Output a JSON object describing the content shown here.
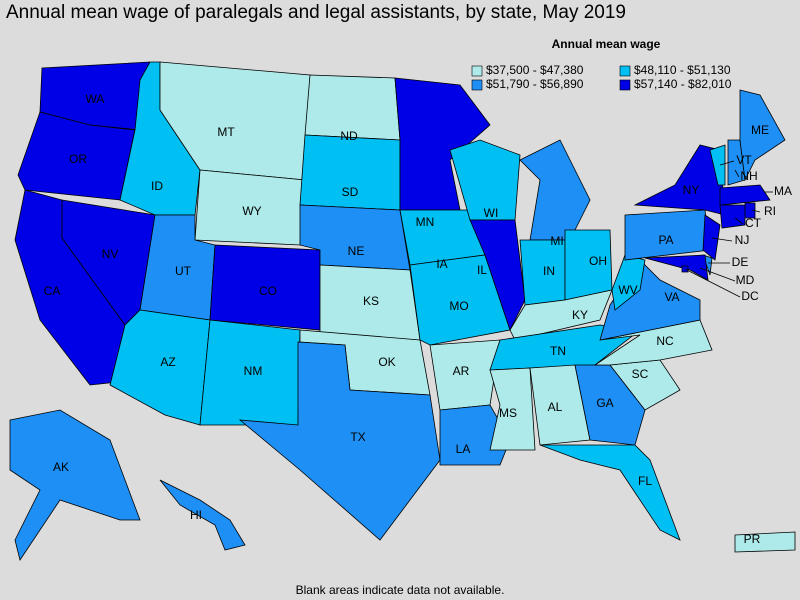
{
  "title": "Annual mean wage of paralegals and legal assistants, by state, May 2019",
  "legend": {
    "title": "Annual mean wage",
    "entries": [
      {
        "label": "$37,500 - $47,380",
        "color": "#aeeaea"
      },
      {
        "label": "$48,110 - $51,130",
        "color": "#00bff3"
      },
      {
        "label": "$51,790 - $56,890",
        "color": "#1e8ff5"
      },
      {
        "label": "$57,140 - $82,010",
        "color": "#0000e6"
      }
    ]
  },
  "states": [
    {
      "label": "WA",
      "class": 3
    },
    {
      "label": "OR",
      "class": 3
    },
    {
      "label": "CA",
      "class": 3
    },
    {
      "label": "NV",
      "class": 3
    },
    {
      "label": "ID",
      "class": 1
    },
    {
      "label": "MT",
      "class": 0
    },
    {
      "label": "WY",
      "class": 0
    },
    {
      "label": "UT",
      "class": 2
    },
    {
      "label": "CO",
      "class": 3
    },
    {
      "label": "AZ",
      "class": 1
    },
    {
      "label": "NM",
      "class": 1
    },
    {
      "label": "ND",
      "class": 0
    },
    {
      "label": "SD",
      "class": 1
    },
    {
      "label": "NE",
      "class": 2
    },
    {
      "label": "KS",
      "class": 0
    },
    {
      "label": "OK",
      "class": 0
    },
    {
      "label": "TX",
      "class": 2
    },
    {
      "label": "MN",
      "class": 3
    },
    {
      "label": "IA",
      "class": 1
    },
    {
      "label": "MO",
      "class": 1
    },
    {
      "label": "AR",
      "class": 0
    },
    {
      "label": "LA",
      "class": 2
    },
    {
      "label": "WI",
      "class": 1
    },
    {
      "label": "IL",
      "class": 3
    },
    {
      "label": "MI",
      "class": 2
    },
    {
      "label": "IN",
      "class": 1
    },
    {
      "label": "OH",
      "class": 1
    },
    {
      "label": "KY",
      "class": 0
    },
    {
      "label": "TN",
      "class": 1
    },
    {
      "label": "MS",
      "class": 0
    },
    {
      "label": "AL",
      "class": 0
    },
    {
      "label": "GA",
      "class": 2
    },
    {
      "label": "FL",
      "class": 1
    },
    {
      "label": "SC",
      "class": 0
    },
    {
      "label": "NC",
      "class": 0
    },
    {
      "label": "VA",
      "class": 2
    },
    {
      "label": "WV",
      "class": 1
    },
    {
      "label": "PA",
      "class": 2
    },
    {
      "label": "NY",
      "class": 3
    },
    {
      "label": "NJ",
      "class": 3
    },
    {
      "label": "DE",
      "class": 2
    },
    {
      "label": "MD",
      "class": 3
    },
    {
      "label": "DC",
      "class": 3
    },
    {
      "label": "VT",
      "class": 1
    },
    {
      "label": "NH",
      "class": 2
    },
    {
      "label": "MA",
      "class": 3
    },
    {
      "label": "RI",
      "class": 3
    },
    {
      "label": "CT",
      "class": 3
    },
    {
      "label": "ME",
      "class": 2
    },
    {
      "label": "AK",
      "class": 2
    },
    {
      "label": "HI",
      "class": 2
    },
    {
      "label": "PR",
      "class": 0
    }
  ],
  "footnote": "Blank areas indicate data not available."
}
